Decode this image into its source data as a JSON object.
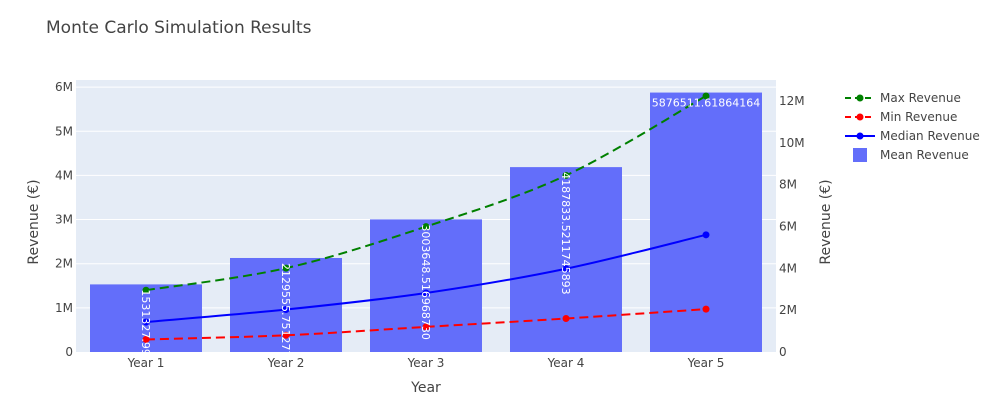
{
  "chart_data": {
    "type": "bar",
    "title": "Monte Carlo Simulation Results",
    "xlabel": "Year",
    "ylabel": "Revenue (€)",
    "y2label": "Revenue (€)",
    "categories": [
      "Year 1",
      "Year 2",
      "Year 3",
      "Year 4",
      "Year 5"
    ],
    "ylim": [
      0,
      6161000
    ],
    "y2lim": [
      0,
      13000000
    ],
    "yticks": [
      0,
      1000000,
      2000000,
      3000000,
      4000000,
      5000000,
      6000000
    ],
    "yticklabels": [
      "0",
      "1M",
      "2M",
      "3M",
      "4M",
      "5M",
      "6M"
    ],
    "y2ticks": [
      0,
      2000000,
      4000000,
      6000000,
      8000000,
      10000000,
      12000000
    ],
    "y2ticklabels": [
      "0",
      "2M",
      "4M",
      "6M",
      "8M",
      "10M",
      "12M"
    ],
    "grid": true,
    "legend_position": "top-right",
    "bars": {
      "name": "Mean Revenue",
      "color": "#636efa",
      "values": [
        1531327.997318607,
        2129555.751277016,
        3003648.5169687,
        4187833.521174589,
        5876511.61864164
      ],
      "labels": [
        "1531327.997318607",
        "2129555.751277016",
        "3003648.516968730",
        "4187833.5211745893",
        "5876511.61864164"
      ]
    },
    "series": [
      {
        "name": "Max Revenue",
        "color": "#008000",
        "dash": "dash",
        "axis": "y",
        "values": [
          1400000,
          1900000,
          2840000,
          4000000,
          5800000
        ]
      },
      {
        "name": "Min Revenue",
        "color": "#ff0000",
        "dash": "dash",
        "axis": "y2",
        "values": [
          600000,
          800000,
          1200000,
          1600000,
          2050000
        ]
      },
      {
        "name": "Median Revenue",
        "color": "#0000ff",
        "dash": "solid",
        "axis": "y2",
        "values": [
          1430000,
          2030000,
          2820000,
          3980000,
          5600000
        ]
      }
    ],
    "legend": [
      "Max Revenue",
      "Min Revenue",
      "Median Revenue",
      "Mean Revenue"
    ]
  }
}
